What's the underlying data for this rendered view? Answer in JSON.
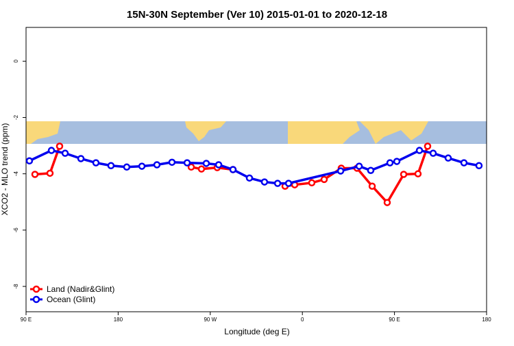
{
  "chart_data": {
    "type": "line",
    "title": "15N-30N September (Ver 10)   2015-01-01 to 2020-12-18",
    "x_label": "Longitude (deg E)",
    "y_label": "XCO2 - MLO trend (ppm)",
    "xlim": [
      90,
      540
    ],
    "ylim": [
      -8.9,
      1.2
    ],
    "xticks": [
      {
        "value": 90,
        "label": "90 E"
      },
      180,
      {
        "value": 270,
        "label": "90 W"
      },
      {
        "value": 360,
        "label": "0"
      },
      {
        "value": 450,
        "label": "90 E"
      },
      {
        "value": 540,
        "label": "180"
      }
    ],
    "yticks": [
      0,
      -2,
      -4,
      -6,
      -8
    ],
    "legend": "bottom-left",
    "series": [
      {
        "name": "Land (Nadir&Glint)",
        "color": "#ff0000",
        "x": [
          98.7,
          113.4,
          122.8,
          null,
          251.4,
          261.4,
          276.8,
          292.2,
          null,
          343.1,
          352.5,
          369.2,
          381.3,
          398.0,
          413.4,
          428.2,
          442.9,
          459.0,
          473.0,
          482.4
        ],
        "values": [
          -4.02,
          -3.98,
          -3.02,
          null,
          -3.76,
          -3.83,
          -3.78,
          -3.85,
          null,
          -4.44,
          -4.39,
          -4.32,
          -4.2,
          -3.8,
          -3.8,
          -4.44,
          -5.02,
          -4.02,
          -4.0,
          -3.02
        ]
      },
      {
        "name": "Ocean (Glint)",
        "color": "#0000ee",
        "x": [
          93.3,
          114.8,
          128.2,
          143.6,
          158.3,
          173.0,
          188.4,
          203.2,
          217.9,
          232.6,
          247.4,
          266.1,
          278.2,
          292.2,
          308.3,
          323.0,
          335.8,
          346.5,
          397.4,
          415.5,
          426.8,
          445.6,
          452.3,
          474.4,
          487.8,
          502.5,
          517.9,
          532.6
        ],
        "values": [
          -3.54,
          -3.17,
          -3.27,
          -3.46,
          -3.61,
          -3.71,
          -3.76,
          -3.73,
          -3.68,
          -3.59,
          -3.61,
          -3.63,
          -3.68,
          -3.85,
          -4.15,
          -4.29,
          -4.34,
          -4.34,
          -3.9,
          -3.73,
          -3.88,
          -3.61,
          -3.56,
          -3.17,
          -3.27,
          -3.44,
          -3.61,
          -3.71
        ]
      }
    ]
  }
}
